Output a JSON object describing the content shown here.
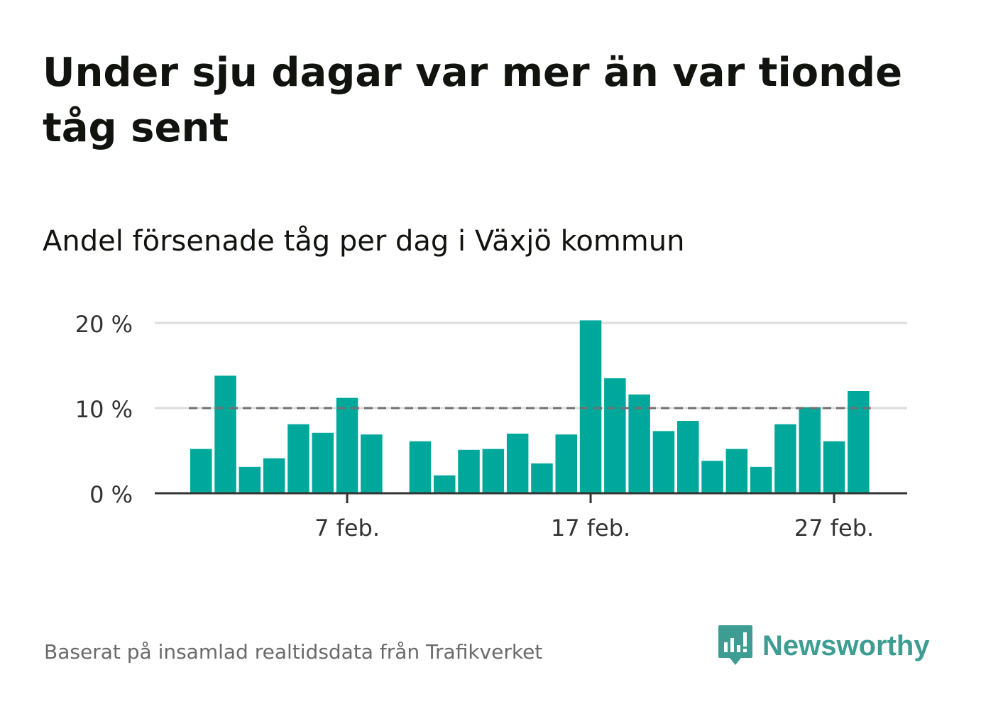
{
  "title": "Under sju dagar var mer än var tionde tåg sent",
  "subtitle": "Andel försenade tåg per dag i Växjö kommun",
  "source": "Baserat på insamlad realtidsdata från Trafikverket",
  "brand": {
    "name": "Newsworthy",
    "color": "#3d9d92"
  },
  "colors": {
    "bar": "#00a89c",
    "threshold": "#707070",
    "grid": "#dddddd",
    "axis": "#333333"
  },
  "chart_data": {
    "type": "bar",
    "ylim": [
      0,
      20
    ],
    "y_ticks": [
      {
        "value": 0,
        "label": "0 %"
      },
      {
        "value": 10,
        "label": "10 %"
      },
      {
        "value": 20,
        "label": "20 %"
      }
    ],
    "x_ticks": [
      {
        "date": "7 feb",
        "label": "7 feb."
      },
      {
        "date": "17 feb",
        "label": "17 feb."
      },
      {
        "date": "27 feb",
        "label": "27 feb."
      }
    ],
    "categories": [
      "1 feb",
      "2 feb",
      "3 feb",
      "4 feb",
      "5 feb",
      "6 feb",
      "7 feb",
      "8 feb",
      "9 feb",
      "10 feb",
      "11 feb",
      "12 feb",
      "13 feb",
      "14 feb",
      "15 feb",
      "16 feb",
      "17 feb",
      "18 feb",
      "19 feb",
      "20 feb",
      "21 feb",
      "22 feb",
      "23 feb",
      "24 feb",
      "25 feb",
      "26 feb",
      "27 feb",
      "28 feb"
    ],
    "values": [
      5.2,
      13.8,
      3.1,
      4.1,
      8.1,
      7.1,
      11.2,
      6.9,
      0,
      6.1,
      2.1,
      5.1,
      5.2,
      7.0,
      3.5,
      6.9,
      20.3,
      13.5,
      11.6,
      7.3,
      8.5,
      3.8,
      5.2,
      3.1,
      8.1,
      10.1,
      6.1,
      12.0
    ],
    "threshold": 10,
    "grid": true
  }
}
